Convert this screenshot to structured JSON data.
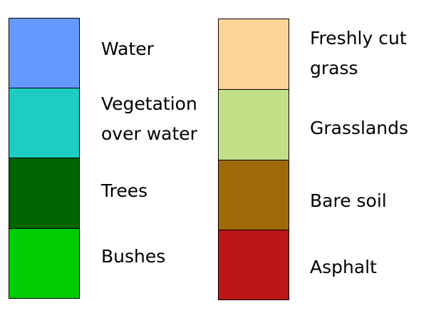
{
  "legend": {
    "left_column": [
      {
        "label_line1": "Water",
        "label_line2": "",
        "color": "#6699FF"
      },
      {
        "label_line1": "Vegetation",
        "label_line2": "over water",
        "color": "#1ECDC1"
      },
      {
        "label_line1": "Trees",
        "label_line2": "",
        "color": "#006400"
      },
      {
        "label_line1": "Bushes",
        "label_line2": "",
        "color": "#00CC00"
      }
    ],
    "right_column": [
      {
        "label_line1": "Freshly cut",
        "label_line2": "grass",
        "color": "#FAD597"
      },
      {
        "label_line1": "Grasslands",
        "label_line2": "",
        "color": "#C1E087"
      },
      {
        "label_line1": "Bare soil",
        "label_line2": "",
        "color": "#9E6B08"
      },
      {
        "label_line1": "Asphalt",
        "label_line2": "",
        "color": "#BD1616"
      }
    ]
  }
}
